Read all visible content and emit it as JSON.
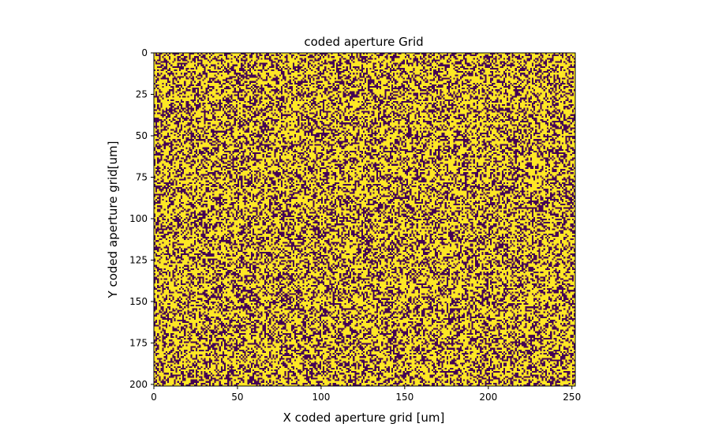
{
  "chart_data": {
    "type": "heatmap",
    "title": "coded aperture Grid",
    "xlabel": "X coded aperture grid [um]",
    "ylabel": "Y coded aperture grid[um]",
    "xlim": [
      0,
      252
    ],
    "ylim": [
      201,
      0
    ],
    "x_ticks": [
      0,
      50,
      100,
      150,
      200,
      250
    ],
    "y_ticks": [
      0,
      25,
      50,
      75,
      100,
      125,
      150,
      175,
      200
    ],
    "grid": false,
    "legend": "none",
    "colormap": "viridis",
    "colors": {
      "low": "#440154",
      "high": "#fde725"
    },
    "grid_size": {
      "cols": 252,
      "rows": 201
    },
    "values": "binary random mask (0 or 1 per cell)",
    "fill_fraction": 0.6,
    "seed": 1234567
  }
}
